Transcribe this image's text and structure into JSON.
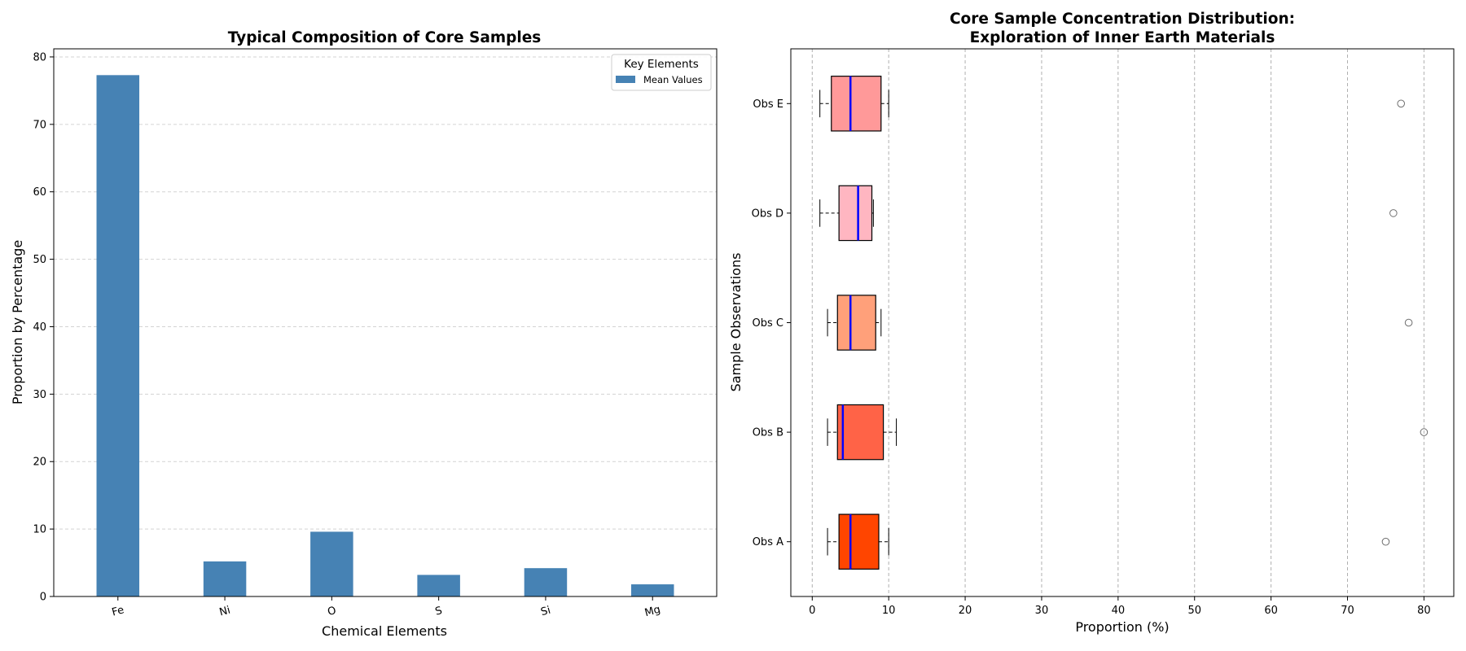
{
  "chart_data": [
    {
      "type": "bar",
      "title": "Typical Composition of Core Samples",
      "xlabel": "Chemical Elements",
      "ylabel": "Proportion by Percentage",
      "categories": [
        "Fe",
        "Ni",
        "O",
        "S",
        "Si",
        "Mg"
      ],
      "values": [
        77.3,
        5.2,
        9.6,
        3.2,
        4.2,
        1.8
      ],
      "ylim": [
        0,
        81.2
      ],
      "yticks": [
        0,
        10,
        20,
        30,
        40,
        50,
        60,
        70,
        80
      ],
      "grid": "y-dashed",
      "bar_color": "#4682b4",
      "legend": {
        "title": "Key Elements",
        "entries": [
          "Mean Values"
        ],
        "position": "upper right"
      }
    },
    {
      "type": "box",
      "orientation": "horizontal",
      "title_lines": [
        "Core Sample Concentration Distribution:",
        "Exploration of Inner Earth Materials"
      ],
      "xlabel": "Proportion (%)",
      "ylabel": "Sample Observations",
      "xlim": [
        -2.8,
        83.9
      ],
      "xticks": [
        0,
        10,
        20,
        30,
        40,
        50,
        60,
        70,
        80
      ],
      "grid": "x-dashed",
      "median_color": "#0000ff",
      "series": [
        {
          "name": "Obs A",
          "whisker_low": 2.0,
          "q1": 3.5,
          "median": 5.0,
          "q3": 8.7,
          "whisker_high": 10.0,
          "outliers": [
            75.0
          ],
          "color": "#ff4500"
        },
        {
          "name": "Obs B",
          "whisker_low": 2.0,
          "q1": 3.3,
          "median": 4.0,
          "q3": 9.3,
          "whisker_high": 11.0,
          "outliers": [
            80.0
          ],
          "color": "#ff6347"
        },
        {
          "name": "Obs C",
          "whisker_low": 2.0,
          "q1": 3.3,
          "median": 5.0,
          "q3": 8.3,
          "whisker_high": 9.0,
          "outliers": [
            78.0
          ],
          "color": "#ffa07a"
        },
        {
          "name": "Obs D",
          "whisker_low": 1.0,
          "q1": 3.5,
          "median": 6.0,
          "q3": 7.8,
          "whisker_high": 8.0,
          "outliers": [
            76.0
          ],
          "color": "#ffb6c1"
        },
        {
          "name": "Obs E",
          "whisker_low": 1.0,
          "q1": 2.5,
          "median": 5.0,
          "q3": 9.0,
          "whisker_high": 10.0,
          "outliers": [
            77.0
          ],
          "color": "#ff9999"
        }
      ]
    }
  ]
}
